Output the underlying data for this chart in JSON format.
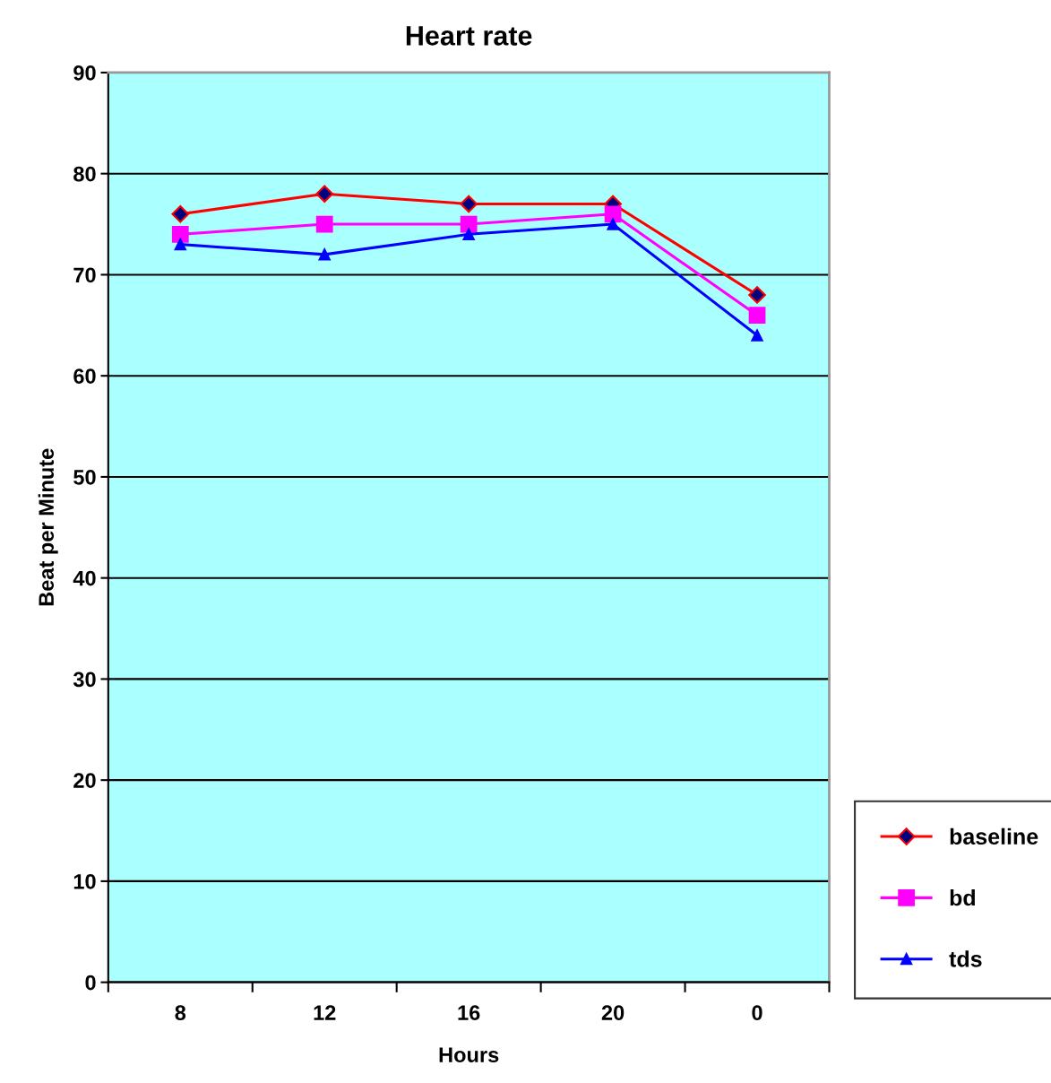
{
  "chart_data": {
    "type": "line",
    "title": "Heart rate",
    "xlabel": "Hours",
    "ylabel": "Beat per Minute",
    "categories": [
      "8",
      "12",
      "16",
      "20",
      "0"
    ],
    "series": [
      {
        "name": "baseline",
        "color": "#ff0000",
        "values": [
          76,
          78,
          77,
          77,
          68
        ],
        "marker": "diamond"
      },
      {
        "name": "bd",
        "color": "#ff00ff",
        "values": [
          74,
          75,
          75,
          76,
          66
        ],
        "marker": "square"
      },
      {
        "name": "tds",
        "color": "#0000ff",
        "values": [
          73,
          72,
          74,
          75,
          64
        ],
        "marker": "triangle"
      }
    ],
    "ylim": [
      0,
      90
    ],
    "yticks": [
      0,
      10,
      20,
      30,
      40,
      50,
      60,
      70,
      80,
      90
    ],
    "grid": "y",
    "legend": "bottom right",
    "line_style": "solid"
  }
}
